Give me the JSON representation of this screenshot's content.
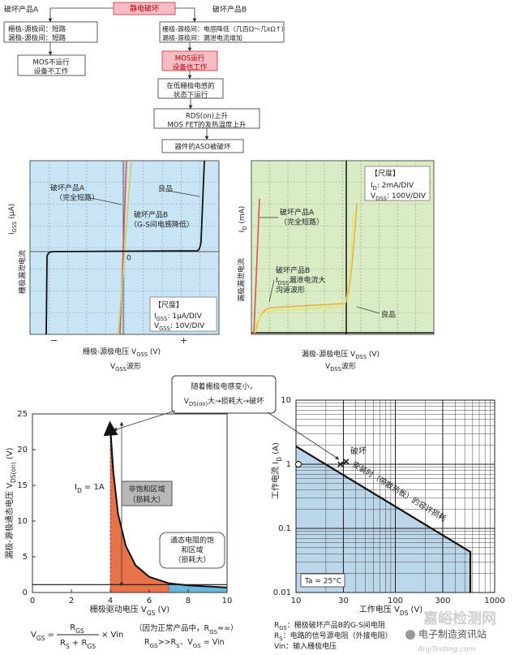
{
  "flow": {
    "product_a": "破坏产品A",
    "esd": "静电破坏",
    "product_b": "破坏产品B",
    "a1": [
      "栅极-源极间：短路",
      "漏极-源极间：短路"
    ],
    "a2": [
      "MOS不运行",
      "设备不工作"
    ],
    "b1": [
      "栅极-源极间：电感降低（几百Ω～几kΩ↑）",
      "漏极-源极间：漏泄电流增加"
    ],
    "b2": [
      "MOS运行",
      "设备也工作"
    ],
    "b3": [
      "在低栅极电感的",
      "状态下运行"
    ],
    "b4": [
      "RDS(on)上升",
      "MOS FET的发热温度上升"
    ],
    "b5": "器件的ASO被破坏"
  },
  "scope_gss": {
    "product_a": [
      "破坏产品A",
      "（完全短路）"
    ],
    "good": "良品",
    "product_b": [
      "破坏产品B",
      "（G-S间电感降低）"
    ],
    "zero": "0",
    "scale_title": "【尺度】",
    "scale": [
      [
        "I",
        "GSS",
        ":  1μA/DIV"
      ],
      [
        "V",
        "GSS",
        ":  10V/DIV"
      ]
    ],
    "y_symbol": [
      "I",
      "GSS",
      "  (μA)"
    ],
    "y_label": "栅极漏泄电流",
    "x_label": [
      "栅极-源极电压   V",
      "GSS",
      "   (V)"
    ],
    "waveform": [
      "V",
      "GSS",
      "波形"
    ],
    "minus": "−",
    "plus": "+"
  },
  "scope_dss": {
    "scale_title": "【尺度】",
    "scale": [
      [
        "I",
        "D",
        ":   2mA/DIV"
      ],
      [
        "V",
        "DSS",
        ":  100V/DIV"
      ]
    ],
    "product_a": [
      "破坏产品A",
      "（完全短路）"
    ],
    "product_b": [
      [
        "破坏产品B"
      ],
      [
        "I",
        "DSS",
        "漏泄电流大"
      ],
      [
        "沟道波形"
      ]
    ],
    "good": "良品",
    "y_symbol": [
      "I",
      "D",
      "  (mA)"
    ],
    "y_label": "漏极漏泄电流",
    "x_label": [
      "漏极-源极电压   V",
      "DSS",
      "   (V)"
    ],
    "waveform": [
      "V",
      "DSS",
      "波形"
    ]
  },
  "chart_data": [
    {
      "type": "line",
      "x_label": [
        "栅极驱动电压   V",
        "GS",
        "   (V)"
      ],
      "y_label": [
        "漏极-源极通态电压   V",
        "DS(on)",
        "   (V)"
      ],
      "xlim": [
        0,
        10
      ],
      "xticks": [
        0,
        2,
        4,
        6,
        8,
        10
      ],
      "ylim": [
        0,
        25
      ],
      "yticks": [
        0,
        5,
        10,
        15,
        20,
        25
      ],
      "series": [
        {
          "color": "#111111",
          "x": [
            4,
            4.15,
            4.4,
            4.8,
            5.3,
            6,
            7,
            8,
            10
          ],
          "values": [
            23,
            17,
            11,
            6.5,
            3.8,
            2.2,
            1.3,
            1.0,
            0.7
          ]
        },
        {
          "color": "#111111",
          "x": [
            0,
            10
          ],
          "values": [
            1.1,
            1.1
          ]
        }
      ],
      "area_colors": [
        "#e8734a",
        "#6ab7dd"
      ],
      "callout": [
        [
          "随着栅极电感变小，"
        ],
        [
          "V",
          "DS(on)",
          "大→损耗大→破坏"
        ]
      ],
      "id_label": [
        "I",
        "D",
        " = 1A"
      ],
      "region_a": [
        "非饱和区域",
        "（损耗大）"
      ],
      "region_b": [
        "通态电阻的饱",
        "和区域",
        "（损耗大）"
      ]
    },
    {
      "type": "line",
      "log_x": true,
      "log_y": true,
      "grid": true,
      "x_label": [
        "工作电压   V",
        "DS",
        "   (V)"
      ],
      "y_label": [
        "工作电流   I",
        "D",
        "   (A)"
      ],
      "xlim": [
        10,
        1000
      ],
      "xticks": [
        10,
        30,
        100,
        300,
        1000
      ],
      "ylim": [
        0.01,
        10
      ],
      "yticks": [
        0.01,
        0.1,
        1,
        10
      ],
      "series": [
        {
          "color": "#111111",
          "x": [
            10,
            569,
            569
          ],
          "values": [
            1.9,
            0.043,
            0.01
          ]
        }
      ],
      "area_color": "#bcd6ea",
      "markers": {
        "x": [
          10,
          28,
          32
        ],
        "values": [
          1,
          1,
          1.1
        ]
      },
      "break_label": "破坏",
      "limit_label": "安装时（带散热板）的容许损耗",
      "ta_label": "Ta = 25°C"
    }
  ],
  "formula": {
    "lhs": [
      "V",
      "GS",
      " ="
    ],
    "num": [
      "R",
      "GS"
    ],
    "den": [
      "R",
      "S",
      " + R",
      "GS"
    ],
    "times": "× Vin",
    "note1": [
      "（因为正常产品中，R",
      "GS",
      "≈∞）"
    ],
    "note2": [
      "R",
      "GS",
      ">>R",
      "S",
      "、V",
      "GS",
      " = Vin"
    ]
  },
  "legend": [
    [
      "R",
      "GS",
      "：栅极破坏产品B的G-S间电阻"
    ],
    [
      "R",
      "S",
      "：电路的信号源电阻（外接电阻）"
    ],
    [
      "Vin：输入栅极电压"
    ]
  ],
  "watermark": {
    "site": "嘉峪检测网",
    "channel": "电子制造资讯站",
    "url": "AnyTesting.com"
  }
}
